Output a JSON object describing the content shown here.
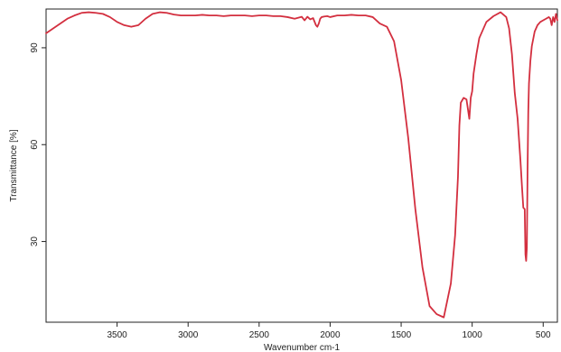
{
  "chart_data": {
    "type": "line",
    "title": "",
    "xlabel": "Wavenumber cm-1",
    "ylabel": "Transmittance [%]",
    "xlim": [
      4000,
      400
    ],
    "ylim": [
      5,
      102
    ],
    "x_reversed": true,
    "x_ticks": [
      3500,
      3000,
      2500,
      2000,
      1500,
      1000,
      500
    ],
    "y_ticks": [
      30,
      60,
      90
    ],
    "grid": false,
    "legend": "none",
    "colors": {
      "series": "#d32f3f",
      "axis": "#222222"
    },
    "series": [
      {
        "x": [
          4000,
          3950,
          3900,
          3850,
          3800,
          3750,
          3700,
          3650,
          3600,
          3550,
          3500,
          3450,
          3400,
          3350,
          3300,
          3250,
          3200,
          3150,
          3100,
          3050,
          3000,
          2950,
          2900,
          2850,
          2800,
          2750,
          2700,
          2650,
          2600,
          2550,
          2500,
          2450,
          2400,
          2350,
          2300,
          2250,
          2200,
          2180,
          2160,
          2140,
          2120,
          2100,
          2090,
          2080,
          2070,
          2060,
          2040,
          2020,
          2000,
          1950,
          1900,
          1850,
          1800,
          1750,
          1700,
          1650,
          1600,
          1550,
          1500,
          1450,
          1400,
          1350,
          1300,
          1250,
          1200,
          1150,
          1120,
          1100,
          1090,
          1080,
          1060,
          1040,
          1020,
          1010,
          1000,
          990,
          980,
          970,
          950,
          900,
          850,
          800,
          760,
          740,
          720,
          700,
          680,
          660,
          650,
          640,
          630,
          625,
          620,
          615,
          610,
          605,
          600,
          590,
          580,
          560,
          540,
          520,
          500,
          480,
          460,
          450,
          440,
          430,
          420,
          410,
          400
        ],
        "y": [
          94.5,
          96.0,
          97.5,
          99.0,
          100.0,
          100.8,
          101.0,
          100.8,
          100.5,
          99.5,
          98.0,
          97.0,
          96.5,
          97.0,
          99.0,
          100.5,
          101.0,
          100.8,
          100.3,
          100.0,
          100.0,
          100.0,
          100.2,
          100.0,
          100.0,
          99.8,
          100.0,
          100.0,
          100.0,
          99.8,
          100.0,
          100.0,
          99.8,
          99.8,
          99.5,
          99.0,
          99.6,
          98.5,
          99.6,
          98.8,
          99.2,
          97.0,
          96.5,
          97.5,
          99.0,
          99.5,
          99.7,
          99.8,
          99.5,
          100.0,
          100.0,
          100.2,
          100.0,
          100.0,
          99.5,
          97.5,
          96.5,
          92.0,
          80.0,
          62.0,
          40.0,
          22.0,
          10.0,
          7.5,
          6.5,
          17.0,
          32.0,
          50.0,
          66.0,
          73.0,
          74.5,
          74.0,
          68.0,
          74.5,
          76.5,
          82.0,
          85.0,
          88.0,
          93.0,
          98.0,
          99.8,
          101.0,
          99.5,
          96.0,
          88.0,
          76.0,
          68.0,
          55.0,
          47.5,
          40.5,
          40.0,
          26.0,
          24.0,
          28.0,
          52.0,
          70.0,
          79.0,
          86.0,
          90.5,
          95.0,
          97.0,
          98.0,
          98.5,
          99.0,
          99.5,
          99.0,
          97.0,
          99.5,
          98.0,
          100.5,
          98.5
        ]
      }
    ]
  }
}
